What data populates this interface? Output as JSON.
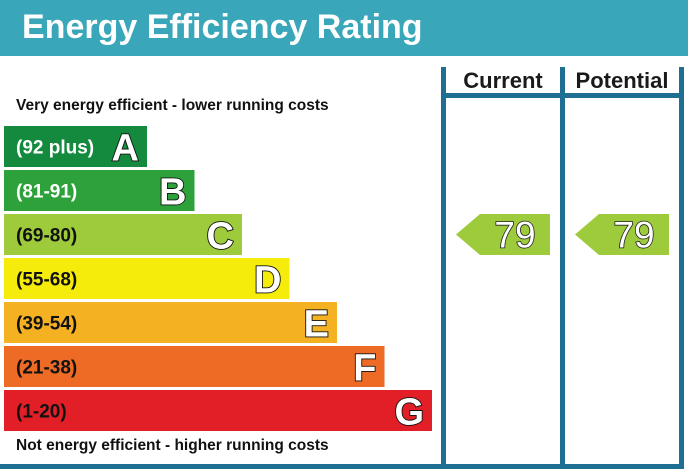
{
  "header": {
    "title": "Energy Efficiency Rating"
  },
  "columns": {
    "current_label": "Current",
    "potential_label": "Potential"
  },
  "captions": {
    "top": "Very energy efficient - lower running costs",
    "bottom": "Not energy efficient - higher running costs"
  },
  "colors": {
    "header_bg": "#3aa6b9",
    "frame": "#1f6f93"
  },
  "chart_data": {
    "type": "bar",
    "bands": [
      {
        "range": "(92 plus)",
        "letter": "A",
        "color": "#138a3e",
        "text": "light"
      },
      {
        "range": "(81-91)",
        "letter": "B",
        "color": "#2ea23a",
        "text": "light"
      },
      {
        "range": "(69-80)",
        "letter": "C",
        "color": "#9dcb3c",
        "text": "dark"
      },
      {
        "range": "(55-68)",
        "letter": "D",
        "color": "#f5ec0c",
        "text": "dark"
      },
      {
        "range": "(39-54)",
        "letter": "E",
        "color": "#f4b122",
        "text": "dark"
      },
      {
        "range": "(21-38)",
        "letter": "F",
        "color": "#ee6b26",
        "text": "dark"
      },
      {
        "range": "(1-20)",
        "letter": "G",
        "color": "#e21f26",
        "text": "dark"
      }
    ],
    "current": {
      "value": 79,
      "band": "C",
      "color": "#9dcb3c"
    },
    "potential": {
      "value": 79,
      "band": "C",
      "color": "#9dcb3c"
    }
  }
}
